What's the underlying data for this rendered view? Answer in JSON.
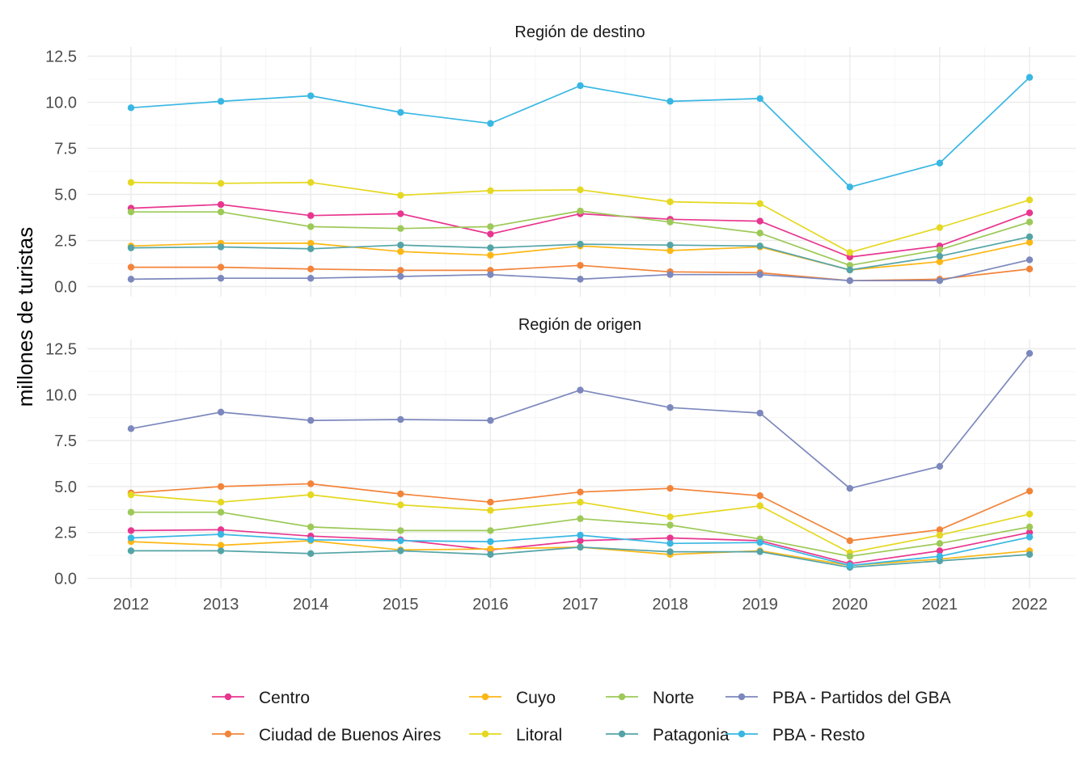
{
  "chart_data": {
    "type": "line",
    "ylabel": "millones de turistas",
    "xlabel": "",
    "x": [
      2012,
      2013,
      2014,
      2015,
      2016,
      2017,
      2018,
      2019,
      2020,
      2021,
      2022
    ],
    "ylim": [
      0,
      12.5
    ],
    "yticks": [
      "0.0",
      "2.5",
      "5.0",
      "7.5",
      "10.0",
      "12.5"
    ],
    "legend_position": "bottom",
    "grid": true,
    "legend": [
      {
        "name": "Centro",
        "color": "#E8368F"
      },
      {
        "name": "Ciudad de Buenos Aires",
        "color": "#F2843A"
      },
      {
        "name": "Cuyo",
        "color": "#FDB714"
      },
      {
        "name": "Litoral",
        "color": "#E5D820"
      },
      {
        "name": "Norte",
        "color": "#9DC958"
      },
      {
        "name": "Patagonia",
        "color": "#54A4A7"
      },
      {
        "name": "PBA - Partidos del GBA",
        "color": "#7C88BD"
      },
      {
        "name": "PBA - Resto",
        "color": "#38B7E3"
      }
    ],
    "panels": [
      {
        "title": "Región de destino",
        "series": [
          {
            "name": "Centro",
            "values": [
              4.25,
              4.45,
              3.85,
              3.95,
              2.85,
              3.95,
              3.65,
              3.55,
              1.6,
              2.2,
              4.0
            ]
          },
          {
            "name": "Ciudad de Buenos Aires",
            "values": [
              1.05,
              1.05,
              0.95,
              0.88,
              0.88,
              1.15,
              0.8,
              0.75,
              0.32,
              0.4,
              0.95
            ]
          },
          {
            "name": "Cuyo",
            "values": [
              2.2,
              2.35,
              2.35,
              1.9,
              1.7,
              2.2,
              1.95,
              2.15,
              0.9,
              1.35,
              2.4
            ]
          },
          {
            "name": "Litoral",
            "values": [
              5.65,
              5.6,
              5.65,
              4.95,
              5.2,
              5.25,
              4.6,
              4.5,
              1.85,
              3.2,
              4.7
            ]
          },
          {
            "name": "Norte",
            "values": [
              4.05,
              4.05,
              3.25,
              3.15,
              3.25,
              4.1,
              3.5,
              2.9,
              1.15,
              2.0,
              3.5
            ]
          },
          {
            "name": "Patagonia",
            "values": [
              2.1,
              2.15,
              2.05,
              2.25,
              2.1,
              2.3,
              2.25,
              2.2,
              0.9,
              1.65,
              2.7
            ]
          },
          {
            "name": "PBA - Partidos del GBA",
            "values": [
              0.4,
              0.45,
              0.45,
              0.55,
              0.65,
              0.4,
              0.65,
              0.65,
              0.32,
              0.32,
              1.45
            ]
          },
          {
            "name": "PBA - Resto",
            "values": [
              9.7,
              10.05,
              10.35,
              9.45,
              8.85,
              10.9,
              10.05,
              10.2,
              5.4,
              6.7,
              11.35
            ]
          }
        ]
      },
      {
        "title": "Región de origen",
        "series": [
          {
            "name": "Centro",
            "values": [
              2.6,
              2.65,
              2.3,
              2.1,
              1.55,
              2.05,
              2.2,
              2.05,
              0.8,
              1.5,
              2.5
            ]
          },
          {
            "name": "Ciudad de Buenos Aires",
            "values": [
              4.65,
              5.0,
              5.15,
              4.6,
              4.15,
              4.7,
              4.9,
              4.5,
              2.05,
              2.65,
              4.75
            ]
          },
          {
            "name": "Cuyo",
            "values": [
              2.0,
              1.8,
              2.05,
              1.55,
              1.6,
              1.7,
              1.3,
              1.5,
              0.7,
              1.05,
              1.5
            ]
          },
          {
            "name": "Litoral",
            "values": [
              4.55,
              4.15,
              4.55,
              4.0,
              3.7,
              4.15,
              3.35,
              3.95,
              1.4,
              2.35,
              3.5
            ]
          },
          {
            "name": "Norte",
            "values": [
              3.6,
              3.6,
              2.8,
              2.6,
              2.6,
              3.25,
              2.9,
              2.15,
              1.2,
              1.9,
              2.8
            ]
          },
          {
            "name": "Patagonia",
            "values": [
              1.5,
              1.5,
              1.35,
              1.5,
              1.3,
              1.7,
              1.45,
              1.45,
              0.6,
              0.95,
              1.3
            ]
          },
          {
            "name": "PBA - Partidos del GBA",
            "values": [
              8.15,
              9.05,
              8.6,
              8.65,
              8.6,
              10.25,
              9.3,
              9.0,
              4.9,
              6.1,
              12.25
            ]
          },
          {
            "name": "PBA - Resto",
            "values": [
              2.2,
              2.4,
              2.1,
              2.05,
              2.0,
              2.35,
              1.9,
              1.95,
              0.7,
              1.2,
              2.25
            ]
          }
        ]
      }
    ]
  }
}
